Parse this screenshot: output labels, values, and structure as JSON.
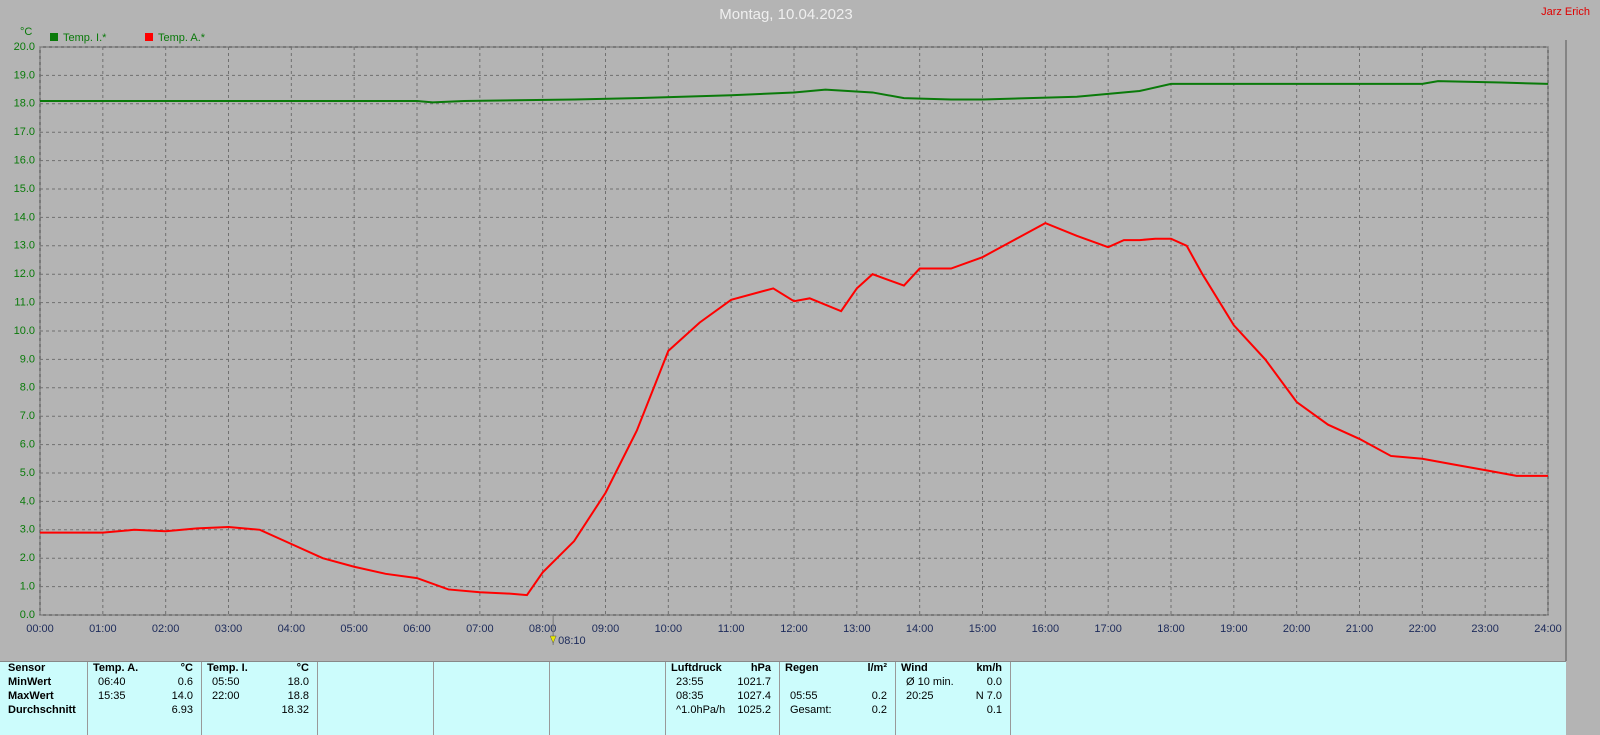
{
  "chart_data": {
    "type": "line",
    "title": "Montag, 10.04.2023",
    "owner": "Jarz Erich",
    "y_label": "°C",
    "grid": true,
    "legend": "top-left",
    "xlim": [
      0,
      24
    ],
    "ylim": [
      0,
      20
    ],
    "xticks": [
      {
        "value": 0,
        "label": "00:00"
      },
      {
        "value": 1,
        "label": "01:00"
      },
      {
        "value": 2,
        "label": "02:00"
      },
      {
        "value": 3,
        "label": "03:00"
      },
      {
        "value": 4,
        "label": "04:00"
      },
      {
        "value": 5,
        "label": "05:00"
      },
      {
        "value": 6,
        "label": "06:00"
      },
      {
        "value": 7,
        "label": "07:00"
      },
      {
        "value": 8,
        "label": "08:00"
      },
      {
        "value": 9,
        "label": "09:00"
      },
      {
        "value": 10,
        "label": "10:00"
      },
      {
        "value": 11,
        "label": "11:00"
      },
      {
        "value": 12,
        "label": "12:00"
      },
      {
        "value": 13,
        "label": "13:00"
      },
      {
        "value": 14,
        "label": "14:00"
      },
      {
        "value": 15,
        "label": "15:00"
      },
      {
        "value": 16,
        "label": "16:00"
      },
      {
        "value": 17,
        "label": "17:00"
      },
      {
        "value": 18,
        "label": "18:00"
      },
      {
        "value": 19,
        "label": "19:00"
      },
      {
        "value": 20,
        "label": "20:00"
      },
      {
        "value": 21,
        "label": "21:00"
      },
      {
        "value": 22,
        "label": "22:00"
      },
      {
        "value": 23,
        "label": "23:00"
      },
      {
        "value": 24,
        "label": "24:00"
      }
    ],
    "yticks": [
      {
        "value": 0,
        "label": "0.0"
      },
      {
        "value": 1,
        "label": "1.0"
      },
      {
        "value": 2,
        "label": "2.0"
      },
      {
        "value": 3,
        "label": "3.0"
      },
      {
        "value": 4,
        "label": "4.0"
      },
      {
        "value": 5,
        "label": "5.0"
      },
      {
        "value": 6,
        "label": "6.0"
      },
      {
        "value": 7,
        "label": "7.0"
      },
      {
        "value": 8,
        "label": "8.0"
      },
      {
        "value": 9,
        "label": "9.0"
      },
      {
        "value": 10,
        "label": "10.0"
      },
      {
        "value": 11,
        "label": "11.0"
      },
      {
        "value": 12,
        "label": "12.0"
      },
      {
        "value": 13,
        "label": "13.0"
      },
      {
        "value": 14,
        "label": "14.0"
      },
      {
        "value": 15,
        "label": "15.0"
      },
      {
        "value": 16,
        "label": "16.0"
      },
      {
        "value": 17,
        "label": "17.0"
      },
      {
        "value": 18,
        "label": "18.0"
      },
      {
        "value": 19,
        "label": "19.0"
      },
      {
        "value": 20,
        "label": "20.0"
      }
    ],
    "marker": {
      "x": 8.1667,
      "label": "08:10"
    },
    "series": [
      {
        "name": "Temp. I.*",
        "color": "#0a7a0a",
        "x": [
          0,
          6,
          6.25,
          6.75,
          8.5,
          9.5,
          11,
          12,
          12.5,
          13.25,
          13.75,
          14.5,
          15,
          16.5,
          17.5,
          18,
          22,
          22.25,
          23.25,
          24
        ],
        "values": [
          18.1,
          18.1,
          18.05,
          18.1,
          18.15,
          18.2,
          18.3,
          18.4,
          18.5,
          18.4,
          18.2,
          18.15,
          18.15,
          18.25,
          18.45,
          18.7,
          18.7,
          18.8,
          18.75,
          18.7
        ]
      },
      {
        "name": "Temp. A.*",
        "color": "#ff0000",
        "x": [
          0,
          0.5,
          1,
          1.5,
          2,
          2.5,
          3,
          3.5,
          4,
          4.5,
          5,
          5.5,
          6,
          6.5,
          7,
          7.5,
          7.75,
          8,
          8.5,
          9,
          9.5,
          10,
          10.5,
          11,
          11.5,
          11.67,
          12,
          12.25,
          12.75,
          13,
          13.25,
          13.75,
          14,
          14.5,
          15,
          15.5,
          16,
          16.5,
          17,
          17.25,
          17.5,
          17.75,
          18,
          18.25,
          18.5,
          19,
          19.5,
          20,
          20.5,
          21,
          21.5,
          22,
          22.5,
          23,
          23.5,
          24
        ],
        "values": [
          2.9,
          2.9,
          2.9,
          3.0,
          2.95,
          3.05,
          3.1,
          3.0,
          2.5,
          2.0,
          1.7,
          1.45,
          1.3,
          0.9,
          0.8,
          0.75,
          0.7,
          1.5,
          2.6,
          4.3,
          6.5,
          9.3,
          10.3,
          11.1,
          11.4,
          11.5,
          11.05,
          11.15,
          10.7,
          11.5,
          12.0,
          11.6,
          12.2,
          12.2,
          12.6,
          13.2,
          13.8,
          13.35,
          12.95,
          13.2,
          13.2,
          13.25,
          13.25,
          13.0,
          12.0,
          10.2,
          9.0,
          7.5,
          6.7,
          6.2,
          5.6,
          5.5,
          5.3,
          5.1,
          4.9,
          4.9
        ]
      }
    ]
  },
  "table": {
    "corner": "Sensor",
    "row_labels": [
      "MinWert",
      "MaxWert",
      "Durchschnitt"
    ],
    "groups": [
      {
        "name": "Temp. A.",
        "unit": "°C",
        "rows": [
          [
            "06:40",
            "0.6"
          ],
          [
            "15:35",
            "14.0"
          ],
          [
            null,
            "6.93"
          ]
        ]
      },
      {
        "name": "Temp. I.",
        "unit": "°C",
        "rows": [
          [
            "05:50",
            "18.0"
          ],
          [
            "22:00",
            "18.8"
          ],
          [
            null,
            "18.32"
          ]
        ]
      },
      {
        "name": "Luftdruck",
        "unit": "hPa",
        "rows": [
          [
            "23:55",
            "1021.7"
          ],
          [
            "08:35",
            "1027.4"
          ],
          [
            "^1.0hPa/h",
            "1025.2"
          ]
        ]
      },
      {
        "name": "Regen",
        "unit": "l/m²",
        "rows": [
          [
            null,
            null
          ],
          [
            "05:55",
            "0.2"
          ],
          [
            "Gesamt:",
            "0.2"
          ]
        ]
      },
      {
        "name": "Wind",
        "unit": "km/h",
        "rows": [
          [
            "Ø 10 min.",
            "0.0"
          ],
          [
            "20:25",
            "N 7.0"
          ],
          [
            null,
            "0.1"
          ]
        ]
      }
    ]
  }
}
